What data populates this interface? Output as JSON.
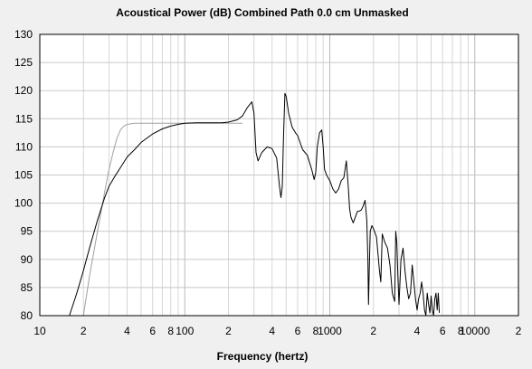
{
  "chart_data": {
    "type": "line",
    "title": "Acoustical Power (dB)   Combined   Path 0.0 cm   Unmasked",
    "xlabel": "Frequency (hertz)",
    "ylabel": "",
    "x_scale": "log",
    "xlim": [
      10,
      20000
    ],
    "ylim": [
      80,
      130
    ],
    "grid": true,
    "y_ticks": [
      {
        "value": 80,
        "label": "80"
      },
      {
        "value": 85,
        "label": "85"
      },
      {
        "value": 90,
        "label": "90"
      },
      {
        "value": 95,
        "label": "95"
      },
      {
        "value": 100,
        "label": "100"
      },
      {
        "value": 105,
        "label": "105"
      },
      {
        "value": 110,
        "label": "110"
      },
      {
        "value": 115,
        "label": "115"
      },
      {
        "value": 120,
        "label": "120"
      },
      {
        "value": 125,
        "label": "125"
      },
      {
        "value": 130,
        "label": "130"
      }
    ],
    "x_ticks": [
      {
        "value": 10,
        "label": "10"
      },
      {
        "value": 20,
        "label": "2"
      },
      {
        "value": 40,
        "label": "4"
      },
      {
        "value": 60,
        "label": "6"
      },
      {
        "value": 80,
        "label": "8"
      },
      {
        "value": 100,
        "label": "100"
      },
      {
        "value": 200,
        "label": "2"
      },
      {
        "value": 400,
        "label": "4"
      },
      {
        "value": 600,
        "label": "6"
      },
      {
        "value": 800,
        "label": "8"
      },
      {
        "value": 1000,
        "label": "1000"
      },
      {
        "value": 2000,
        "label": "2"
      },
      {
        "value": 4000,
        "label": "4"
      },
      {
        "value": 6000,
        "label": "6"
      },
      {
        "value": 8000,
        "label": "8"
      },
      {
        "value": 10000,
        "label": "10000"
      },
      {
        "value": 20000,
        "label": "2"
      }
    ],
    "series": [
      {
        "color": "#000000",
        "x": [
          16,
          18,
          20,
          22,
          25,
          28,
          30,
          33,
          36,
          40,
          45,
          50,
          60,
          70,
          80,
          90,
          100,
          120,
          150,
          180,
          200,
          230,
          250,
          270,
          290,
          300,
          310,
          320,
          340,
          370,
          400,
          430,
          450,
          460,
          470,
          480,
          490,
          500,
          520,
          550,
          580,
          600,
          650,
          700,
          750,
          780,
          800,
          820,
          850,
          880,
          900,
          920,
          950,
          1000,
          1050,
          1100,
          1150,
          1200,
          1250,
          1300,
          1340,
          1370,
          1400,
          1450,
          1500,
          1550,
          1600,
          1650,
          1700,
          1750,
          1800,
          1830,
          1850,
          1870,
          1900,
          1950,
          2000,
          2100,
          2200,
          2250,
          2300,
          2400,
          2500,
          2600,
          2700,
          2800,
          2850,
          2900,
          2950,
          3000,
          3100,
          3200,
          3300,
          3400,
          3500,
          3600,
          3700,
          3800,
          3900,
          4000,
          4100,
          4200,
          4300,
          4400,
          4500,
          4600,
          4700,
          4800,
          4900,
          5000,
          5100,
          5200,
          5300,
          5400,
          5500,
          5600,
          5700
        ],
        "y": [
          80,
          84,
          88,
          92,
          97,
          101,
          103,
          104.8,
          106.3,
          108.2,
          109.5,
          110.8,
          112.3,
          113.2,
          113.7,
          114,
          114.2,
          114.3,
          114.3,
          114.3,
          114.4,
          114.8,
          115.5,
          117,
          118,
          116,
          109,
          107.5,
          109,
          110,
          109.7,
          108,
          103,
          101,
          103,
          112,
          119.5,
          119,
          116,
          113.5,
          112.5,
          112,
          109.5,
          108.5,
          106,
          104.2,
          105.5,
          110,
          112.5,
          113,
          110,
          106,
          105,
          104,
          102.5,
          101.8,
          102.5,
          104,
          104.5,
          107.5,
          103,
          99,
          97.5,
          96.5,
          97.5,
          98.5,
          98.6,
          98.8,
          99.5,
          100.5,
          97,
          90,
          82,
          88,
          95,
          96,
          95.5,
          94,
          88,
          86,
          94.5,
          93,
          92,
          89,
          84,
          82.5,
          95,
          93,
          87,
          82,
          90,
          92,
          88,
          85,
          83,
          84,
          89,
          86,
          83,
          81,
          83,
          84,
          86,
          84,
          81,
          80,
          84,
          82,
          80.5,
          83.5,
          81,
          80,
          83,
          84,
          81,
          84,
          80.5
        ]
      },
      {
        "color": "#a0a0a0",
        "x": [
          20,
          22,
          25,
          28,
          30,
          32,
          34,
          36,
          38,
          40,
          45,
          50,
          60,
          80,
          100,
          150,
          200,
          250
        ],
        "y": [
          80,
          87,
          95,
          102,
          106,
          109,
          111.5,
          113,
          113.7,
          114,
          114.2,
          114.2,
          114.2,
          114.2,
          114.2,
          114.2,
          114.2,
          114.2
        ]
      }
    ]
  }
}
